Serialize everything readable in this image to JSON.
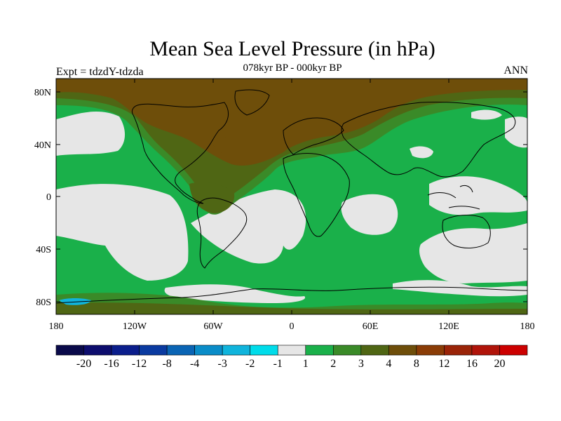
{
  "map": {
    "title": "Mean Sea Level Pressure (in hPa)",
    "subtitle": "078kyr BP - 000kyr BP",
    "left_string": "Expt = tdzdY-tdzda",
    "right_string": "ANN",
    "lat_ticks": [
      "80N",
      "40N",
      "0",
      "40S",
      "80S"
    ],
    "lon_ticks": [
      "180",
      "120W",
      "60W",
      "0",
      "60E",
      "120E",
      "180"
    ]
  },
  "colorbar": {
    "colors": [
      "#0a0a4a",
      "#0d0d6e",
      "#0b1e8c",
      "#0a3aa0",
      "#0a64b4",
      "#0a8cc8",
      "#10b4dc",
      "#00dcea",
      "#e6e6e6",
      "#1ab04a",
      "#3a8a28",
      "#4f6614",
      "#6e4e0a",
      "#8a3c06",
      "#9a2408",
      "#b0140a",
      "#cc0000"
    ],
    "labels": [
      "-20",
      "-16",
      "-12",
      "-8",
      "-4",
      "-3",
      "-2",
      "-1",
      "1",
      "2",
      "3",
      "4",
      "8",
      "12",
      "16",
      "20"
    ]
  },
  "field_colors": {
    "high": "#6e4e0a",
    "mid": "#4f6614",
    "moderate": "#3a8a28",
    "positive": "#1ab04a",
    "neutral": "#e6e6e6",
    "negative": "#10b4dc",
    "ocean_base": "#1ab04a"
  }
}
